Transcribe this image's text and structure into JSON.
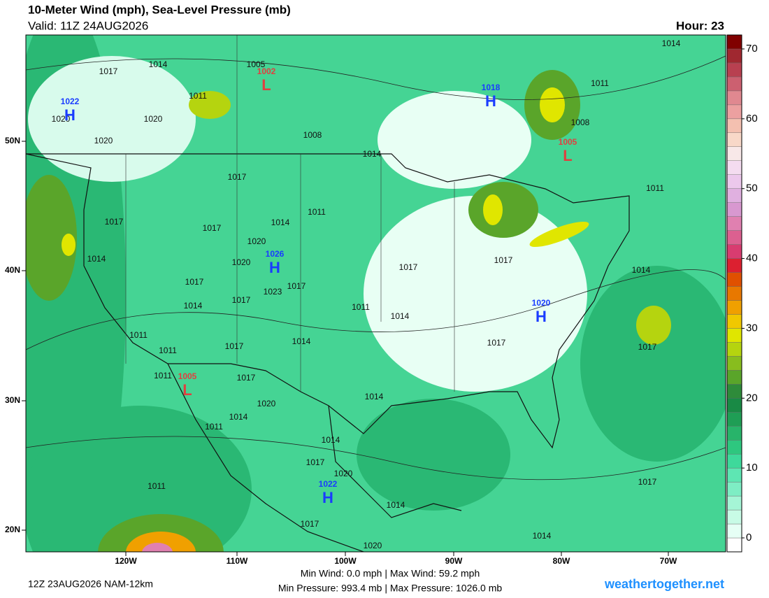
{
  "header": {
    "title": "10-Meter Wind (mph), Sea-Level Pressure (mb)",
    "valid": "Valid: 11Z 24AUG2026",
    "hour": "Hour: 23"
  },
  "map": {
    "latitude_labels": [
      "50N",
      "40N",
      "30N",
      "20N"
    ],
    "longitude_labels": [
      "120W",
      "110W",
      "100W",
      "90W",
      "80W",
      "70W"
    ],
    "pressure_centers": [
      {
        "letter": "H",
        "value": 1022,
        "color": "#1a3cff"
      },
      {
        "letter": "L",
        "value": 1002,
        "color": "#e04040"
      },
      {
        "letter": "H",
        "value": 1018,
        "color": "#1a3cff"
      },
      {
        "letter": "L",
        "value": 1005,
        "color": "#e04040"
      },
      {
        "letter": "H",
        "value": 1026,
        "color": "#1a3cff"
      },
      {
        "letter": "H",
        "value": 1020,
        "color": "#1a3cff"
      },
      {
        "letter": "L",
        "value": 1005,
        "color": "#e04040"
      },
      {
        "letter": "H",
        "value": 1022,
        "color": "#1a3cff"
      }
    ],
    "isobar_labels": [
      1017,
      1014,
      1011,
      1020,
      1020,
      1020,
      1005,
      1008,
      1014,
      1014,
      1011,
      1008,
      1017,
      1011,
      1017,
      1017,
      1014,
      1011,
      1020,
      1020,
      1017,
      1023,
      1017,
      1017,
      1014,
      1014,
      1017,
      1017,
      1014,
      1011,
      1014,
      1014,
      1017,
      1011,
      1011,
      1017,
      1017,
      1011,
      1017,
      1020,
      1014,
      1014,
      1011,
      1014,
      1017,
      1020,
      1011,
      1014,
      1017,
      1017,
      1014,
      1020
    ]
  },
  "colorbar": {
    "vlim": [
      -2,
      72
    ],
    "ticks": [
      0,
      10,
      20,
      30,
      40,
      50,
      60,
      70
    ],
    "colors": [
      "#ffffff",
      "#e6fff5",
      "#c8fbe6",
      "#a5f5d6",
      "#7eedc4",
      "#5ee6b3",
      "#3ed99b",
      "#2ec77f",
      "#28b46a",
      "#1f9e55",
      "#198a45",
      "#2e8b3a",
      "#5aa52a",
      "#88bd1e",
      "#b5d40f",
      "#e0e600",
      "#f0c800",
      "#f0a000",
      "#e87800",
      "#e05000",
      "#dc2030",
      "#d83c70",
      "#dc6090",
      "#e080b0",
      "#d898d0",
      "#e0b0e0",
      "#ecc8ec",
      "#f4dcf0",
      "#f8e8e8",
      "#f8d8c8",
      "#f4c0b0",
      "#eca0a0",
      "#e08890",
      "#cc6070",
      "#b84050",
      "#a02830",
      "#800000"
    ]
  },
  "footer": {
    "run": "12Z 23AUG2026 NAM-12km",
    "wind": "Min Wind:   0.0 mph | Max Wind:  59.2 mph",
    "pressure": "Min Pressure: 993.4 mb | Max Pressure: 1026.0 mb",
    "site": "weathertogether.net"
  }
}
